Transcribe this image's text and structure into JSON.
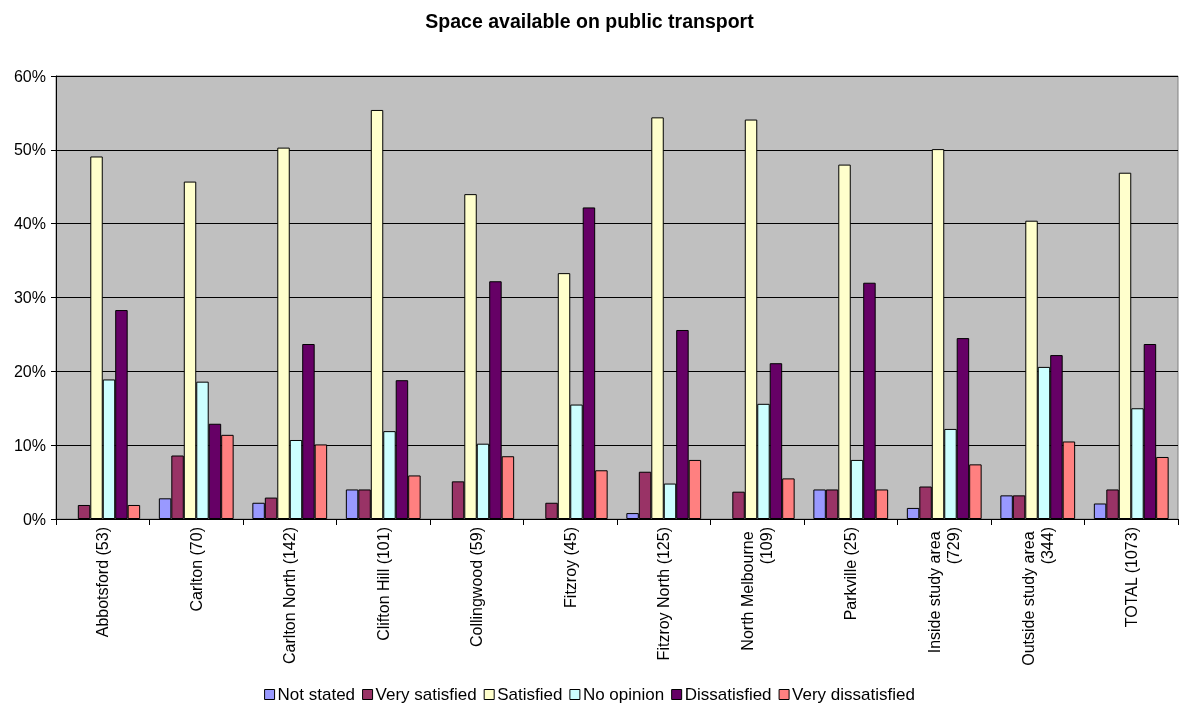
{
  "chart_data": {
    "type": "bar",
    "title": "Space available on public transport",
    "categories": [
      "Abbotsford (53)",
      "Carlton (70)",
      "Carlton North (142)",
      "Clifton Hill (101)",
      "Collingwood (59)",
      "Fitzroy (45)",
      "Fitzroy North (125)",
      "North Melbourne (109)",
      "Parkville (25)",
      "Inside study area (729)",
      "Outside study area (344)",
      "TOTAL (1073)"
    ],
    "series": [
      {
        "name": "Not stated",
        "color": "#9999ff",
        "values": [
          null,
          2.8,
          2.2,
          4.0,
          null,
          null,
          0.8,
          null,
          4.0,
          1.5,
          3.2,
          2.1
        ]
      },
      {
        "name": "Very satisfied",
        "color": "#993366",
        "values": [
          1.9,
          8.6,
          2.9,
          4.0,
          5.1,
          2.2,
          6.4,
          3.7,
          4.0,
          4.4,
          3.2,
          4.0
        ]
      },
      {
        "name": "Satisfied",
        "color": "#ffffcc",
        "values": [
          49.1,
          45.7,
          50.3,
          55.4,
          44.0,
          33.3,
          54.4,
          54.1,
          48.0,
          50.1,
          40.4,
          46.9
        ]
      },
      {
        "name": "No opinion",
        "color": "#ccffff",
        "values": [
          18.9,
          18.6,
          10.7,
          11.9,
          10.2,
          15.5,
          4.8,
          15.6,
          8.0,
          12.2,
          20.6,
          15.0
        ]
      },
      {
        "name": "Dissatisfied",
        "color": "#660066",
        "values": [
          28.3,
          12.9,
          23.7,
          18.8,
          32.2,
          42.2,
          25.6,
          21.1,
          32.0,
          24.5,
          22.2,
          23.7
        ]
      },
      {
        "name": "Very dissatisfied",
        "color": "#ff8080",
        "values": [
          1.9,
          11.4,
          10.1,
          5.9,
          8.5,
          6.6,
          8.0,
          5.5,
          4.0,
          7.4,
          10.5,
          8.4
        ]
      }
    ],
    "ylim": [
      0,
      60
    ],
    "yticks": [
      {
        "value": 0,
        "label": "0%"
      },
      {
        "value": 10,
        "label": "10%"
      },
      {
        "value": 20,
        "label": "20%"
      },
      {
        "value": 30,
        "label": "30%"
      },
      {
        "value": 40,
        "label": "40%"
      },
      {
        "value": 50,
        "label": "50%"
      },
      {
        "value": 60,
        "label": "60%"
      }
    ],
    "grid": "y",
    "legend": "bottom"
  }
}
